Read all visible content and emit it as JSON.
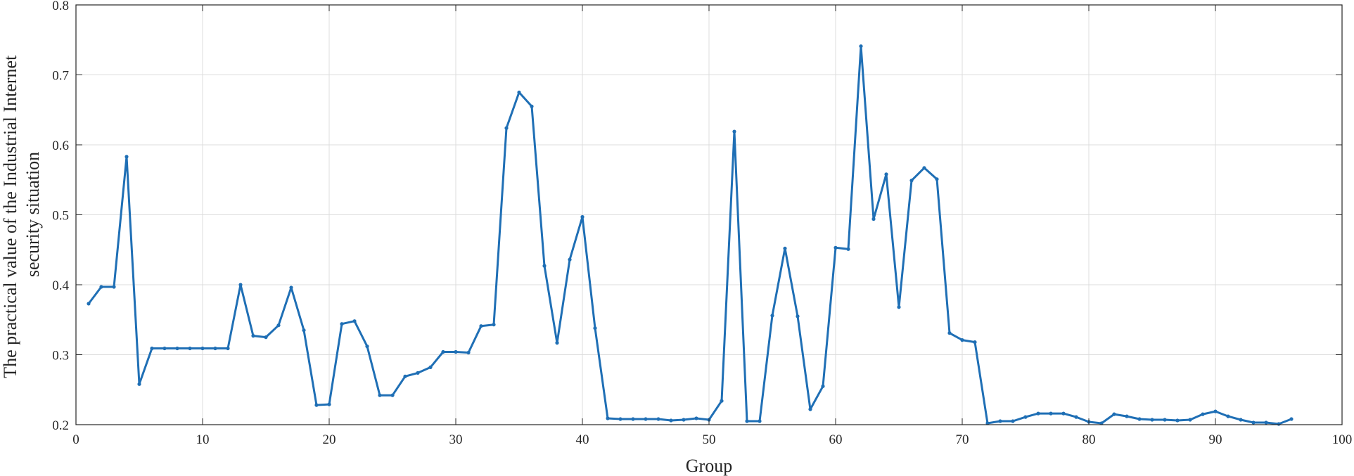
{
  "chart_data": {
    "type": "line",
    "xlabel": "Group",
    "ylabel": [
      "The practical value of the Industrial Internet",
      "security situation"
    ],
    "xlim": [
      0,
      100
    ],
    "ylim": [
      0.2,
      0.8
    ],
    "xticks": [
      0,
      10,
      20,
      30,
      40,
      50,
      60,
      70,
      80,
      90,
      100
    ],
    "yticks": [
      0.2,
      0.3,
      0.4,
      0.5,
      0.6,
      0.7,
      0.8
    ],
    "xtick_labels": [
      "0",
      "10",
      "20",
      "30",
      "40",
      "50",
      "60",
      "70",
      "80",
      "90",
      "100"
    ],
    "ytick_labels": [
      "0.2",
      "0.3",
      "0.4",
      "0.5",
      "0.6",
      "0.7",
      "0.8"
    ],
    "grid": true,
    "line_color": "#1f6fb5",
    "series": [
      {
        "marker": "dot",
        "x": [
          1,
          2,
          3,
          4,
          5,
          6,
          7,
          8,
          9,
          10,
          11,
          12,
          13,
          14,
          15,
          16,
          17,
          18,
          19,
          20,
          21,
          22,
          23,
          24,
          25,
          26,
          27,
          28,
          29,
          30,
          31,
          32,
          33,
          34,
          35,
          36,
          37,
          38,
          39,
          40,
          41,
          42,
          43,
          44,
          45,
          46,
          47,
          48,
          49,
          50,
          51,
          52,
          53,
          54,
          55,
          56,
          57,
          58,
          59,
          60,
          61,
          62,
          63,
          64,
          65,
          66,
          67,
          68,
          69,
          70,
          71,
          72,
          73,
          74,
          75,
          76,
          77,
          78,
          79,
          80,
          81,
          82,
          83,
          84,
          85,
          86,
          87,
          88,
          89,
          90,
          91,
          92,
          93,
          94,
          95,
          96
        ],
        "y": [
          0.373,
          0.397,
          0.397,
          0.583,
          0.258,
          0.309,
          0.309,
          0.309,
          0.309,
          0.309,
          0.309,
          0.309,
          0.4,
          0.327,
          0.325,
          0.342,
          0.396,
          0.335,
          0.228,
          0.229,
          0.344,
          0.348,
          0.312,
          0.242,
          0.242,
          0.269,
          0.274,
          0.282,
          0.304,
          0.304,
          0.303,
          0.341,
          0.343,
          0.624,
          0.675,
          0.655,
          0.427,
          0.317,
          0.436,
          0.497,
          0.338,
          0.209,
          0.208,
          0.208,
          0.208,
          0.208,
          0.206,
          0.207,
          0.209,
          0.207,
          0.234,
          0.619,
          0.205,
          0.205,
          0.356,
          0.452,
          0.355,
          0.222,
          0.255,
          0.453,
          0.451,
          0.741,
          0.494,
          0.558,
          0.368,
          0.549,
          0.567,
          0.551,
          0.331,
          0.321,
          0.318,
          0.202,
          0.205,
          0.205,
          0.211,
          0.216,
          0.216,
          0.216,
          0.211,
          0.204,
          0.202,
          0.215,
          0.212,
          0.208,
          0.207,
          0.207,
          0.206,
          0.207,
          0.215,
          0.219,
          0.212,
          0.207,
          0.203,
          0.203,
          0.201,
          0.208
        ]
      }
    ]
  }
}
